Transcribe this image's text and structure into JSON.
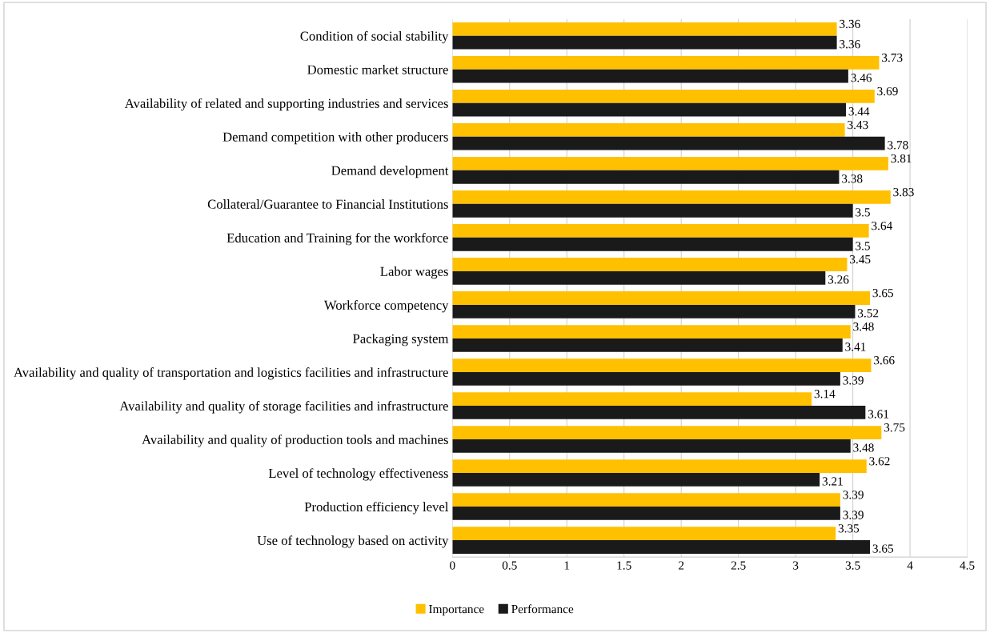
{
  "chart_data": {
    "type": "bar",
    "orientation": "horizontal",
    "categories": [
      "Condition of social stability",
      "Domestic market structure",
      "Availability of related and supporting industries and services",
      "Demand competition with other producers",
      "Demand development",
      "Collateral/Guarantee to Financial Institutions",
      "Education and Training for the workforce",
      "Labor wages",
      "Workforce competency",
      "Packaging system",
      "Availability and quality of transportation and logistics facilities and infrastructure",
      "Availability and quality of storage facilities and infrastructure",
      "Availability and quality of production tools and machines",
      "Level of technology effectiveness",
      "Production efficiency level",
      "Use of technology based on activity"
    ],
    "series": [
      {
        "name": "Importance",
        "color": "#ffc000",
        "values": [
          3.36,
          3.73,
          3.69,
          3.43,
          3.81,
          3.83,
          3.64,
          3.45,
          3.65,
          3.48,
          3.66,
          3.14,
          3.75,
          3.62,
          3.39,
          3.35
        ]
      },
      {
        "name": "Performance",
        "color": "#1a1a1a",
        "values": [
          3.36,
          3.46,
          3.44,
          3.78,
          3.38,
          3.5,
          3.5,
          3.26,
          3.52,
          3.41,
          3.39,
          3.61,
          3.48,
          3.21,
          3.39,
          3.65
        ]
      }
    ],
    "xlim": [
      0,
      4.5
    ],
    "xticks": [
      0,
      0.5,
      1,
      1.5,
      2,
      2.5,
      3,
      3.5,
      4,
      4.5
    ],
    "grid": "x",
    "legend": "bottom",
    "data_labels": true
  }
}
